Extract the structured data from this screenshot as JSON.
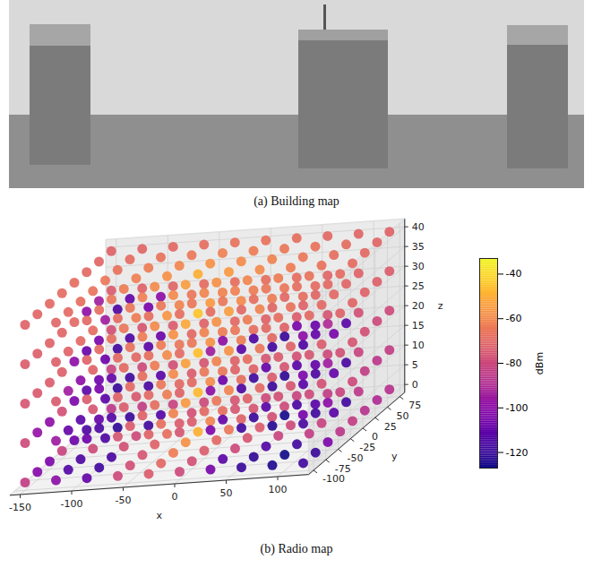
{
  "building_map": {
    "caption": "(a) Building map"
  },
  "chart_data": {
    "type": "scatter3d",
    "caption": "(b) Radio map",
    "xlabel": "x",
    "ylabel": "y",
    "zlabel": "z",
    "x": [
      -150,
      -120,
      -90,
      -60,
      -30,
      0,
      30,
      60,
      90,
      120
    ],
    "y": [
      -100,
      -75,
      -50,
      -25,
      0,
      25,
      50,
      75
    ],
    "layers": [
      {
        "z": 0,
        "values": [
          [
            -84,
            -100,
            -110,
            -80,
            -74,
            -80,
            -106,
            -120,
            -125,
            -118
          ],
          [
            -102,
            -114,
            -118,
            -78,
            -70,
            -78,
            -112,
            -122,
            -127,
            -120
          ],
          [
            -104,
            -115,
            -116,
            -76,
            -64,
            -74,
            -80,
            -114,
            -118,
            -104
          ],
          [
            -82,
            -80,
            -78,
            -72,
            -58,
            -70,
            -76,
            -82,
            -84,
            -86
          ],
          [
            -108,
            -115,
            -80,
            -68,
            -50,
            -66,
            -74,
            -80,
            -82,
            -84
          ],
          [
            -115,
            -122,
            -118,
            -74,
            -62,
            -72,
            -78,
            -106,
            -112,
            -88
          ],
          [
            -110,
            -120,
            -114,
            -78,
            -68,
            -76,
            -80,
            -112,
            -118,
            -90
          ],
          [
            -86,
            -84,
            -82,
            -80,
            -76,
            -80,
            -82,
            -84,
            -86,
            -88
          ]
        ]
      },
      {
        "z": 10,
        "values": [
          [
            -80,
            -96,
            -108,
            -76,
            -72,
            -76,
            -104,
            -118,
            -124,
            -116
          ],
          [
            -98,
            -110,
            -115,
            -74,
            -68,
            -74,
            -110,
            -120,
            -126,
            -118
          ],
          [
            -100,
            -112,
            -114,
            -72,
            -62,
            -70,
            -76,
            -112,
            -116,
            -100
          ],
          [
            -78,
            -76,
            -74,
            -68,
            -56,
            -66,
            -72,
            -78,
            -80,
            -82
          ],
          [
            -104,
            -112,
            -75,
            -64,
            -48,
            -62,
            -70,
            -76,
            -78,
            -80
          ],
          [
            -112,
            -120,
            -116,
            -70,
            -60,
            -68,
            -74,
            -104,
            -110,
            -84
          ],
          [
            -108,
            -118,
            -112,
            -74,
            -66,
            -72,
            -76,
            -110,
            -116,
            -86
          ],
          [
            -82,
            -80,
            -78,
            -76,
            -72,
            -76,
            -78,
            -80,
            -82,
            -84
          ]
        ]
      },
      {
        "z": 20,
        "values": [
          [
            -76,
            -75,
            -74,
            -72,
            -70,
            -72,
            -100,
            -115,
            -120,
            -112
          ],
          [
            -75,
            -95,
            -105,
            -70,
            -66,
            -70,
            -108,
            -118,
            -122,
            -115
          ],
          [
            -74,
            -100,
            -110,
            -68,
            -60,
            -66,
            -72,
            -110,
            -112,
            -95
          ],
          [
            -73,
            -72,
            -70,
            -64,
            -54,
            -62,
            -68,
            -74,
            -76,
            -78
          ],
          [
            -100,
            -108,
            -70,
            -60,
            -46,
            -58,
            -66,
            -72,
            -74,
            -76
          ],
          [
            -110,
            -118,
            -112,
            -66,
            -58,
            -64,
            -70,
            -100,
            -105,
            -78
          ],
          [
            -105,
            -115,
            -108,
            -70,
            -64,
            -68,
            -72,
            -108,
            -112,
            -80
          ],
          [
            -78,
            -76,
            -74,
            -72,
            -70,
            -72,
            -74,
            -76,
            -78,
            -80
          ]
        ]
      },
      {
        "z": 30,
        "values": [
          [
            -74,
            -73,
            -72,
            -70,
            -68,
            -69,
            -95,
            -112,
            -118,
            -115
          ],
          [
            -73,
            -72,
            -70,
            -67,
            -64,
            -66,
            -100,
            -115,
            -120,
            -110
          ],
          [
            -72,
            -70,
            -68,
            -64,
            -58,
            -62,
            -66,
            -70,
            -105,
            -90
          ],
          [
            -71,
            -69,
            -66,
            -60,
            -52,
            -58,
            -64,
            -68,
            -70,
            -72
          ],
          [
            -70,
            -95,
            -64,
            -57,
            -45,
            -55,
            -62,
            -67,
            -70,
            -71
          ],
          [
            -100,
            -115,
            -105,
            -62,
            -56,
            -60,
            -64,
            -68,
            -70,
            -72
          ],
          [
            -95,
            -110,
            -100,
            -66,
            -62,
            -64,
            -66,
            -69,
            -71,
            -73
          ],
          [
            -74,
            -72,
            -71,
            -69,
            -68,
            -68,
            -69,
            -71,
            -72,
            -74
          ]
        ]
      },
      {
        "z": 40,
        "values": [
          [
            -72,
            -71,
            -70,
            -69,
            -68,
            -68,
            -69,
            -70,
            -71,
            -72
          ],
          [
            -71,
            -70,
            -68,
            -66,
            -65,
            -65,
            -66,
            -68,
            -70,
            -71
          ],
          [
            -70,
            -68,
            -66,
            -63,
            -60,
            -61,
            -63,
            -66,
            -68,
            -70
          ],
          [
            -69,
            -67,
            -64,
            -60,
            -55,
            -58,
            -61,
            -64,
            -67,
            -69
          ],
          [
            -69,
            -66,
            -63,
            -58,
            -50,
            -56,
            -60,
            -64,
            -67,
            -69
          ],
          [
            -70,
            -67,
            -64,
            -61,
            -58,
            -60,
            -62,
            -65,
            -68,
            -70
          ],
          [
            -71,
            -69,
            -67,
            -65,
            -63,
            -64,
            -65,
            -67,
            -69,
            -71
          ],
          [
            -72,
            -71,
            -70,
            -68,
            -67,
            -67,
            -68,
            -70,
            -71,
            -72
          ]
        ]
      }
    ],
    "xlim": [
      -160,
      130
    ],
    "ylim": [
      -110,
      85
    ],
    "zlim": [
      -2,
      42
    ],
    "xticks": [
      -150,
      -100,
      -50,
      0,
      50,
      100
    ],
    "yticks": [
      -100,
      -75,
      -50,
      -25,
      0,
      25,
      50,
      75
    ],
    "zticks": [
      0,
      5,
      10,
      15,
      20,
      25,
      30,
      35,
      40
    ],
    "grid": true,
    "colorbar": {
      "label": "dBm",
      "range": [
        -127,
        -33
      ],
      "ticks": [
        -40,
        -60,
        -80,
        -100,
        -120
      ]
    }
  }
}
